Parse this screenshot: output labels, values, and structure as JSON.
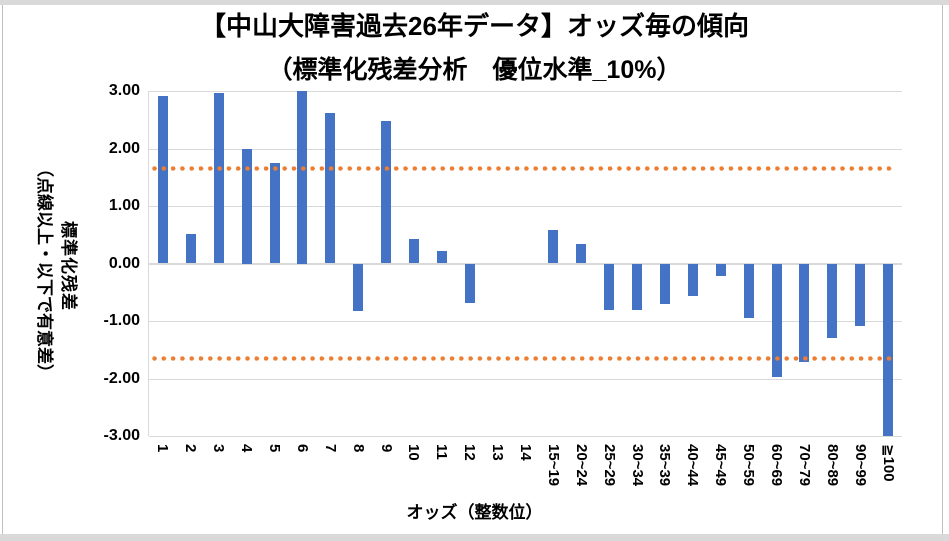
{
  "chart_data": {
    "type": "bar",
    "title": "【中山大障害過去26年データ】オッズ毎の傾向",
    "subtitle": "（標準化残差分析　優位水準_10%）",
    "xlabel": "オッズ（整数位）",
    "ylabel": "標準化残差",
    "ylabel_note": "（点線以上・以下で有意差）",
    "categories": [
      "1",
      "2",
      "3",
      "4",
      "5",
      "6",
      "7",
      "8",
      "9",
      "10",
      "11",
      "12",
      "13",
      "14",
      "15~19",
      "20~24",
      "25~29",
      "30~34",
      "35~39",
      "40~44",
      "45~49",
      "50~59",
      "60~69",
      "70~79",
      "80~89",
      "90~99",
      "≧100"
    ],
    "values": [
      2.92,
      0.52,
      2.97,
      2.0,
      1.74,
      3.0,
      2.62,
      -0.82,
      2.48,
      0.42,
      0.21,
      -0.68,
      0,
      0,
      0.59,
      0.34,
      -0.8,
      -0.8,
      -0.7,
      -0.57,
      -0.22,
      -0.95,
      -1.98,
      -1.71,
      -1.29,
      -1.09,
      -3.0
    ],
    "ylim": [
      -3,
      3
    ],
    "ytick_labels": [
      "3.00",
      "2.00",
      "1.00",
      "0.00",
      "-1.00",
      "-2.00",
      "-3.00"
    ],
    "ytick_values": [
      3,
      2,
      1,
      0,
      -1,
      -2,
      -3
    ],
    "significance_lines": [
      1.645,
      -1.645
    ],
    "bar_color": "#4472C4",
    "sig_line_color": "#ED7D31",
    "gridline_color": "#D9D9D9",
    "grid": true,
    "legend": "none"
  }
}
